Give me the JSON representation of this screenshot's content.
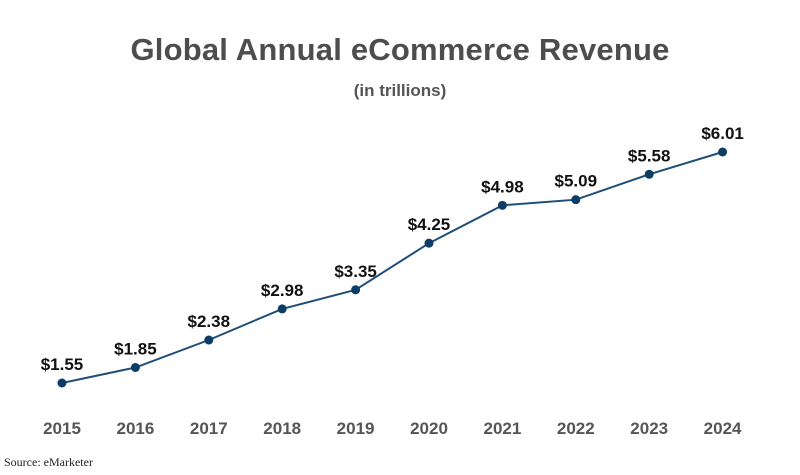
{
  "chart_data": {
    "type": "line",
    "title": "Global Annual eCommerce Revenue",
    "subtitle": "(in trillions)",
    "xlabel": "",
    "ylabel": "",
    "categories": [
      "2015",
      "2016",
      "2017",
      "2018",
      "2019",
      "2020",
      "2021",
      "2022",
      "2023",
      "2024"
    ],
    "series": [
      {
        "values": [
          1.55,
          1.85,
          2.38,
          2.98,
          3.35,
          4.25,
          4.98,
          5.09,
          5.58,
          6.01
        ],
        "labels": [
          "$1.55",
          "$1.85",
          "$2.38",
          "$2.98",
          "$3.35",
          "$4.25",
          "$4.98",
          "$5.09",
          "$5.58",
          "$6.01"
        ],
        "color": "#1f4e79"
      }
    ],
    "ylim": [
      1.55,
      6.01
    ],
    "grid": false,
    "legend": "none"
  },
  "source": "Source: eMarketer",
  "colors": {
    "line": "#1f4e79",
    "marker": "#0d3d66",
    "title": "#4d4d4d"
  }
}
